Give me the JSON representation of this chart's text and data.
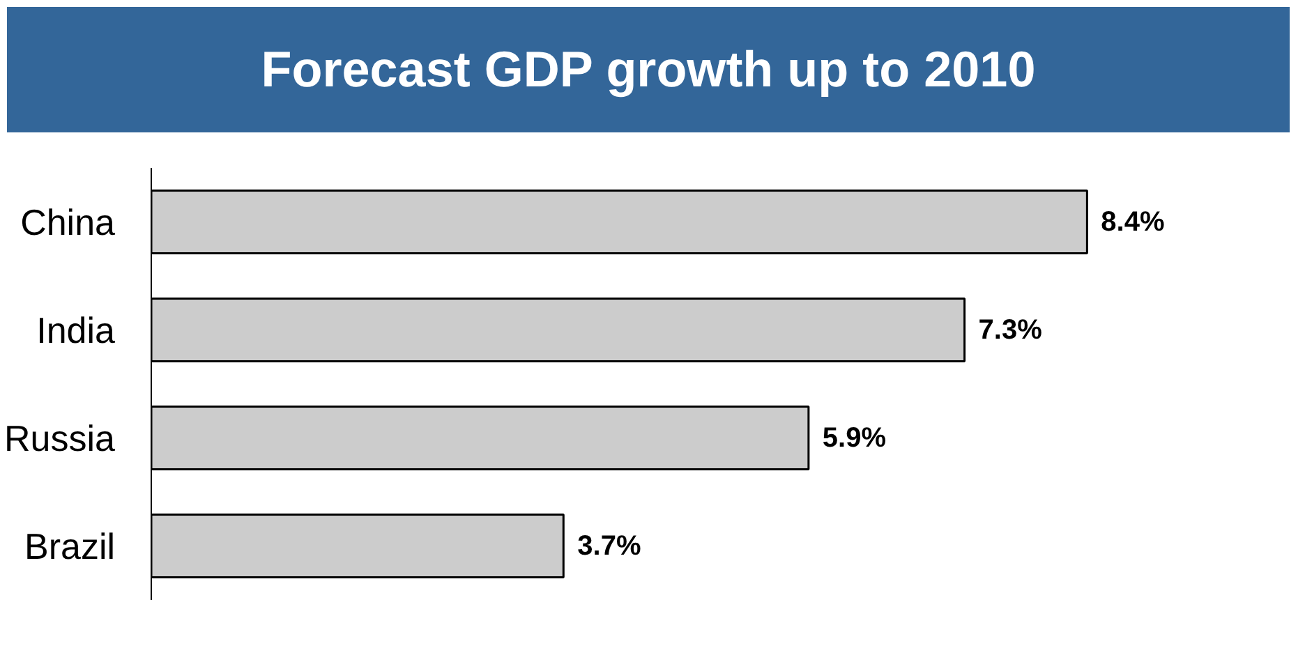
{
  "chart_data": {
    "type": "bar",
    "orientation": "horizontal",
    "title": "Forecast GDP growth up to 2010",
    "categories": [
      "China",
      "India",
      "Russia",
      "Brazil"
    ],
    "values": [
      8.4,
      7.3,
      5.9,
      3.7
    ],
    "value_labels": [
      "8.4%",
      "7.3%",
      "5.9%",
      "3.7%"
    ],
    "color": "#cccccc",
    "grid": false,
    "tick_labels": "y"
  }
}
